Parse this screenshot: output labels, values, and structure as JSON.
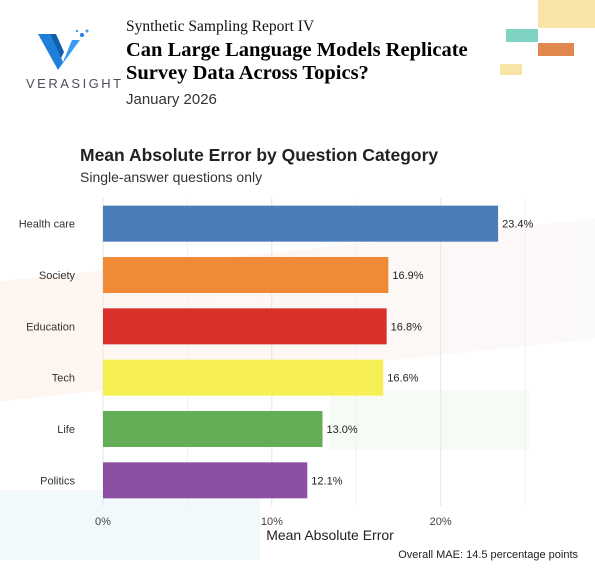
{
  "header": {
    "logo_text": "VERASIGHT",
    "series": "Synthetic Sampling Report IV",
    "title": "Can Large Language Models Replicate Survey Data Across Topics?",
    "date": "January 2026"
  },
  "colors": {
    "deco_yellow": "#f8e4a6",
    "deco_teal": "#7fd3c4",
    "deco_orange": "#e0884d",
    "logo_blue": "#1e7fd8"
  },
  "chart_data": {
    "type": "bar",
    "orientation": "horizontal",
    "title": "Mean Absolute Error by Question Category",
    "subtitle": "Single-answer questions only",
    "xlabel": "Mean Absolute Error",
    "ylabel": "",
    "categories": [
      "Health care",
      "Society",
      "Education",
      "Tech",
      "Life",
      "Politics"
    ],
    "values": [
      23.4,
      16.9,
      16.8,
      16.6,
      13.0,
      12.1
    ],
    "value_labels": [
      "23.4%",
      "16.9%",
      "16.8%",
      "16.6%",
      "13.0%",
      "12.1%"
    ],
    "bar_colors": [
      "#4b7bb8",
      "#f08a36",
      "#d9312a",
      "#f7f055",
      "#62ad56",
      "#8d4fa1"
    ],
    "xlim": [
      0,
      26
    ],
    "x_ticks": [
      0,
      10,
      20
    ],
    "x_tick_labels": [
      "0%",
      "10%",
      "20%"
    ],
    "grid": true,
    "legend": "none"
  },
  "footnote": "Overall MAE: 14.5 percentage points"
}
